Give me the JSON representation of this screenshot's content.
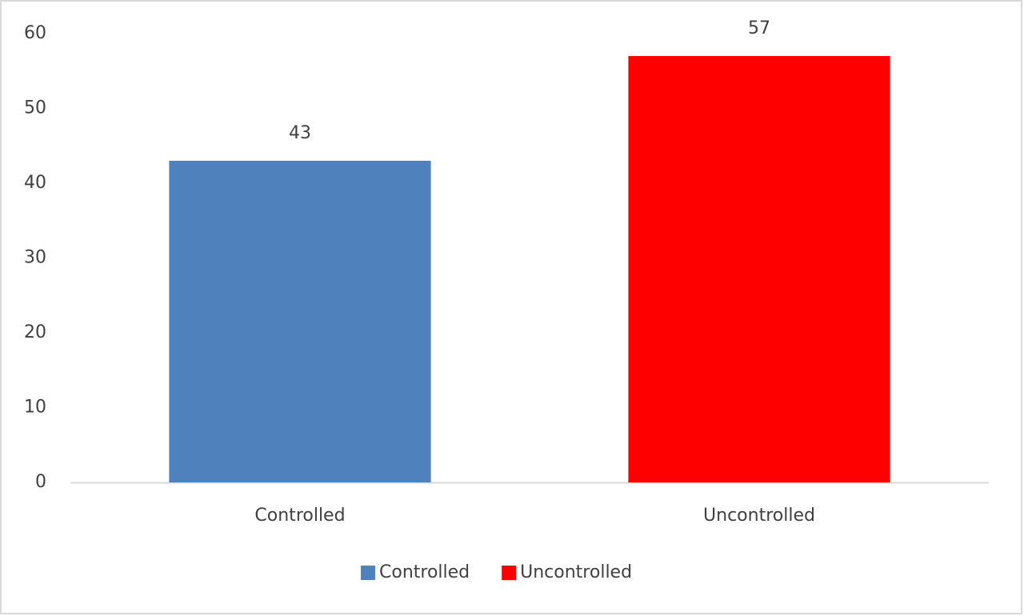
{
  "chart_data": {
    "type": "bar",
    "categories": [
      "Controlled",
      "Uncontrolled"
    ],
    "values": [
      43,
      57
    ],
    "colors": [
      "#4f81bd",
      "#ff0000"
    ],
    "ylim": [
      0,
      60
    ],
    "yticks": [
      0,
      10,
      20,
      30,
      40,
      50,
      60
    ],
    "grid": false,
    "legend": "bottom"
  }
}
